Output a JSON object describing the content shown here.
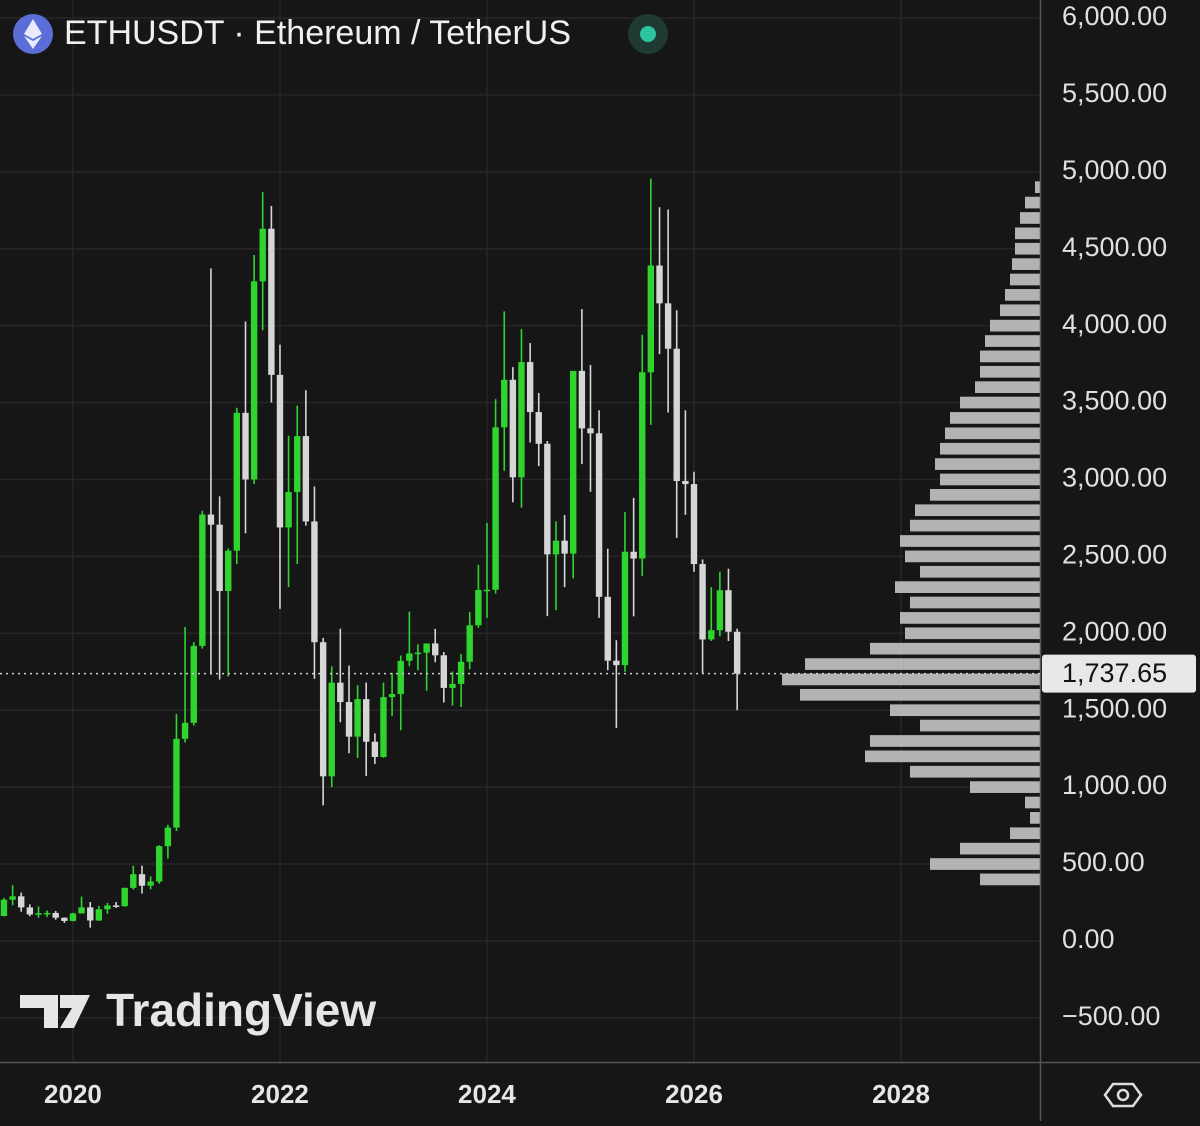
{
  "chart_data": {
    "type": "candlestick",
    "title": "ETHUSDT · Ethereum / TetherUS",
    "watermark": "TradingView",
    "up_color": "#2fd42f",
    "down_color": "#d6d6d6",
    "grid": true,
    "xlim": [
      2019.295,
      2029.343
    ],
    "xticks": [
      2020,
      2022,
      2024,
      2026,
      2028
    ],
    "ylim": [
      -787,
      6117
    ],
    "yticks": [
      {
        "value": 6000,
        "label": "6,000.00"
      },
      {
        "value": 5500,
        "label": "5,500.00"
      },
      {
        "value": 5000,
        "label": "5,000.00"
      },
      {
        "value": 4500,
        "label": "4,500.00"
      },
      {
        "value": 4000,
        "label": "4,000.00"
      },
      {
        "value": 3500,
        "label": "3,500.00"
      },
      {
        "value": 3000,
        "label": "3,000.00"
      },
      {
        "value": 2500,
        "label": "2,500.00"
      },
      {
        "value": 2000,
        "label": "2,000.00"
      },
      {
        "value": 1500,
        "label": "1,500.00"
      },
      {
        "value": 1000,
        "label": "1,000.00"
      },
      {
        "value": 500,
        "label": "500.00"
      },
      {
        "value": 0,
        "label": "0.00"
      },
      {
        "value": -500,
        "label": "−500.00"
      }
    ],
    "last_price": {
      "value": 1737.65,
      "label": "1,737.65"
    },
    "x": [
      2019.333,
      2019.417,
      2019.5,
      2019.583,
      2019.667,
      2019.75,
      2019.833,
      2019.917,
      2020,
      2020.083,
      2020.167,
      2020.25,
      2020.333,
      2020.417,
      2020.5,
      2020.583,
      2020.667,
      2020.75,
      2020.833,
      2020.917,
      2021,
      2021.083,
      2021.167,
      2021.25,
      2021.333,
      2021.417,
      2021.5,
      2021.583,
      2021.667,
      2021.75,
      2021.833,
      2021.917,
      2022,
      2022.083,
      2022.167,
      2022.25,
      2022.333,
      2022.417,
      2022.5,
      2022.583,
      2022.667,
      2022.75,
      2022.833,
      2022.917,
      2023,
      2023.083,
      2023.167,
      2023.25,
      2023.333,
      2023.417,
      2023.5,
      2023.583,
      2023.667,
      2023.75,
      2023.833,
      2023.917,
      2024,
      2024.083,
      2024.167,
      2024.25,
      2024.333,
      2024.417,
      2024.5,
      2024.583,
      2024.667,
      2024.75,
      2024.833,
      2024.917,
      2025,
      2025.083,
      2025.167,
      2025.25,
      2025.333,
      2025.417,
      2025.5,
      2025.583,
      2025.667,
      2025.75,
      2025.833,
      2025.917,
      2026,
      2026.083,
      2026.167,
      2026.25,
      2026.333,
      2026.417
    ],
    "open": [
      162,
      268,
      290,
      218,
      172,
      180,
      182,
      151,
      130,
      179,
      218,
      133,
      206,
      231,
      226,
      345,
      434,
      359,
      386,
      616,
      737,
      1314,
      1418,
      1918,
      2772,
      2706,
      2275,
      2537,
      3433,
      3000,
      4288,
      4630,
      3680,
      2688,
      2919,
      3282,
      2727,
      1942,
      1070,
      1679,
      1553,
      1328,
      1572,
      1295,
      1196,
      1585,
      1605,
      1821,
      1869,
      1874,
      1934,
      1857,
      1645,
      1671,
      1815,
      2052,
      2282,
      2283,
      3339,
      3648,
      3014,
      3763,
      3438,
      3232,
      2513,
      2602,
      2518,
      3706,
      3332,
      3300,
      2237,
      1822,
      1793,
      2530,
      2486,
      3697,
      4391,
      4145,
      3850,
      2990,
      2970,
      2450,
      1960,
      2020,
      2280,
      2010
    ],
    "high": [
      280,
      362,
      314,
      238,
      224,
      198,
      195,
      153,
      183,
      288,
      253,
      227,
      247,
      253,
      346,
      488,
      489,
      420,
      622,
      755,
      1476,
      2041,
      1943,
      2797,
      4372,
      2890,
      2551,
      3466,
      4027,
      4460,
      4868,
      4778,
      3877,
      3285,
      3480,
      3580,
      2954,
      1970,
      1785,
      2030,
      1790,
      1662,
      1680,
      1350,
      1680,
      1743,
      1856,
      2141,
      1928,
      1930,
      2029,
      1878,
      1752,
      1865,
      2138,
      2445,
      2717,
      3522,
      4093,
      3730,
      3977,
      3887,
      3562,
      3250,
      2728,
      2769,
      3682,
      4107,
      3744,
      3450,
      2550,
      1955,
      2788,
      2880,
      3941,
      4956,
      4770,
      4755,
      4100,
      3450,
      3050,
      2480,
      2300,
      2400,
      2420,
      2030
    ],
    "low": [
      160,
      232,
      190,
      160,
      151,
      155,
      138,
      117,
      127,
      179,
      86,
      130,
      176,
      215,
      222,
      334,
      308,
      335,
      372,
      535,
      715,
      1290,
      1400,
      1900,
      1733,
      1700,
      1719,
      2450,
      2650,
      2970,
      3970,
      3500,
      2159,
      2300,
      2450,
      2700,
      1704,
      881,
      1000,
      1422,
      1220,
      1190,
      1073,
      1150,
      1190,
      1462,
      1370,
      1785,
      1760,
      1626,
      1812,
      1550,
      1531,
      1521,
      1765,
      2036,
      2100,
      2258,
      3056,
      2852,
      2817,
      3240,
      3087,
      2112,
      2150,
      2300,
      2357,
      3100,
      2920,
      2100,
      1760,
      1385,
      1750,
      2110,
      2373,
      3355,
      3815,
      3435,
      2620,
      2770,
      2400,
      1740,
      1950,
      1980,
      1950,
      1500
    ],
    "close": [
      268,
      290,
      218,
      172,
      180,
      182,
      151,
      130,
      179,
      218,
      133,
      206,
      231,
      226,
      345,
      434,
      359,
      386,
      616,
      737,
      1314,
      1418,
      1918,
      2772,
      2706,
      2275,
      2537,
      3433,
      3000,
      4288,
      4630,
      3680,
      2688,
      2919,
      3282,
      2727,
      1942,
      1070,
      1679,
      1553,
      1328,
      1572,
      1295,
      1196,
      1585,
      1605,
      1821,
      1869,
      1874,
      1934,
      1857,
      1645,
      1671,
      1815,
      2052,
      2282,
      2283,
      3339,
      3648,
      3014,
      3763,
      3438,
      3232,
      2513,
      2602,
      2518,
      3706,
      3332,
      3300,
      2237,
      1822,
      1793,
      2530,
      2486,
      3697,
      4391,
      4145,
      3850,
      2990,
      2970,
      2450,
      1960,
      2020,
      2280,
      2010,
      1737.65
    ],
    "volume_profile": {
      "color": "#c4c4c4",
      "prices": [
        4900,
        4800,
        4700,
        4600,
        4500,
        4400,
        4300,
        4200,
        4100,
        4000,
        3900,
        3800,
        3700,
        3600,
        3500,
        3400,
        3300,
        3200,
        3100,
        3000,
        2900,
        2800,
        2700,
        2600,
        2500,
        2400,
        2300,
        2200,
        2100,
        2000,
        1900,
        1800,
        1700,
        1600,
        1500,
        1400,
        1300,
        1200,
        1100,
        1000,
        900,
        800,
        700,
        600,
        500,
        400
      ],
      "values": [
        5,
        15,
        20,
        25,
        25,
        28,
        30,
        35,
        40,
        50,
        55,
        60,
        60,
        65,
        80,
        90,
        95,
        100,
        105,
        100,
        110,
        125,
        130,
        140,
        135,
        120,
        145,
        130,
        140,
        135,
        170,
        235,
        258,
        240,
        150,
        120,
        170,
        175,
        130,
        70,
        15,
        10,
        30,
        80,
        110,
        60
      ]
    }
  }
}
